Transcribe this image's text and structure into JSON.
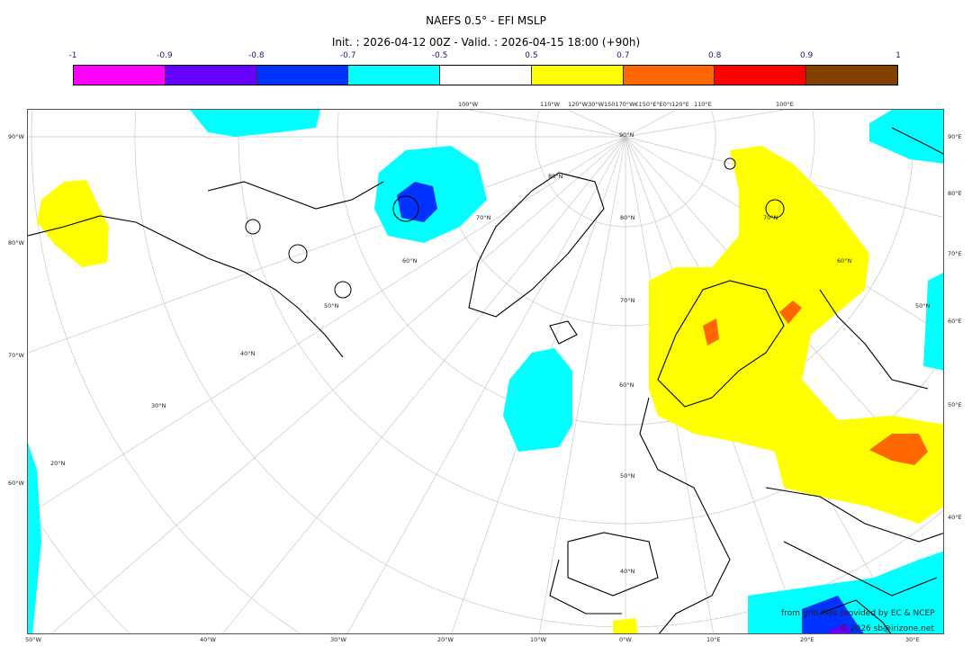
{
  "title": "NAEFS 0.5° - EFI MSLP",
  "subtitle": "Init. : 2026-04-12 00Z - Valid. : 2026-04-15 18:00 (+90h)",
  "colorbar": {
    "ticks": [
      "-1",
      "-0.9",
      "-0.8",
      "-0.7",
      "-0.5",
      "0.5",
      "0.7",
      "0.8",
      "0.9",
      "1"
    ],
    "colors": [
      "#ff00ff",
      "#6600ff",
      "#0033ff",
      "#00ffff",
      "#ffffff",
      "#ffff00",
      "#ff6600",
      "#ff0000",
      "#804000"
    ]
  },
  "axes": {
    "left": [
      "90°W",
      "80°W",
      "70°W",
      "60°W"
    ],
    "right": [
      "90°E",
      "80°E",
      "70°E",
      "60°E",
      "50°E",
      "40°E"
    ],
    "bottom": [
      "50°W",
      "40°W",
      "30°W",
      "20°W",
      "10°W",
      "0°W",
      "10°E",
      "20°E",
      "30°E"
    ],
    "top": [
      "100°W",
      "110°W",
      "120°W30°W150170°W€150°E°E0°I120°E",
      "110°E",
      "100°E"
    ],
    "lat_labels": [
      "90°N",
      "80°N",
      "70°N",
      "60°N",
      "50°N",
      "40°N",
      "30°N",
      "20°N",
      "80°N",
      "70°N",
      "60°N",
      "50°N",
      "70°N",
      "60°N",
      "50°N",
      "40°N"
    ]
  },
  "credits": {
    "source": "from grib files provided by EC & NCEP",
    "copyright": "© 2026 sb@irizone.net"
  }
}
